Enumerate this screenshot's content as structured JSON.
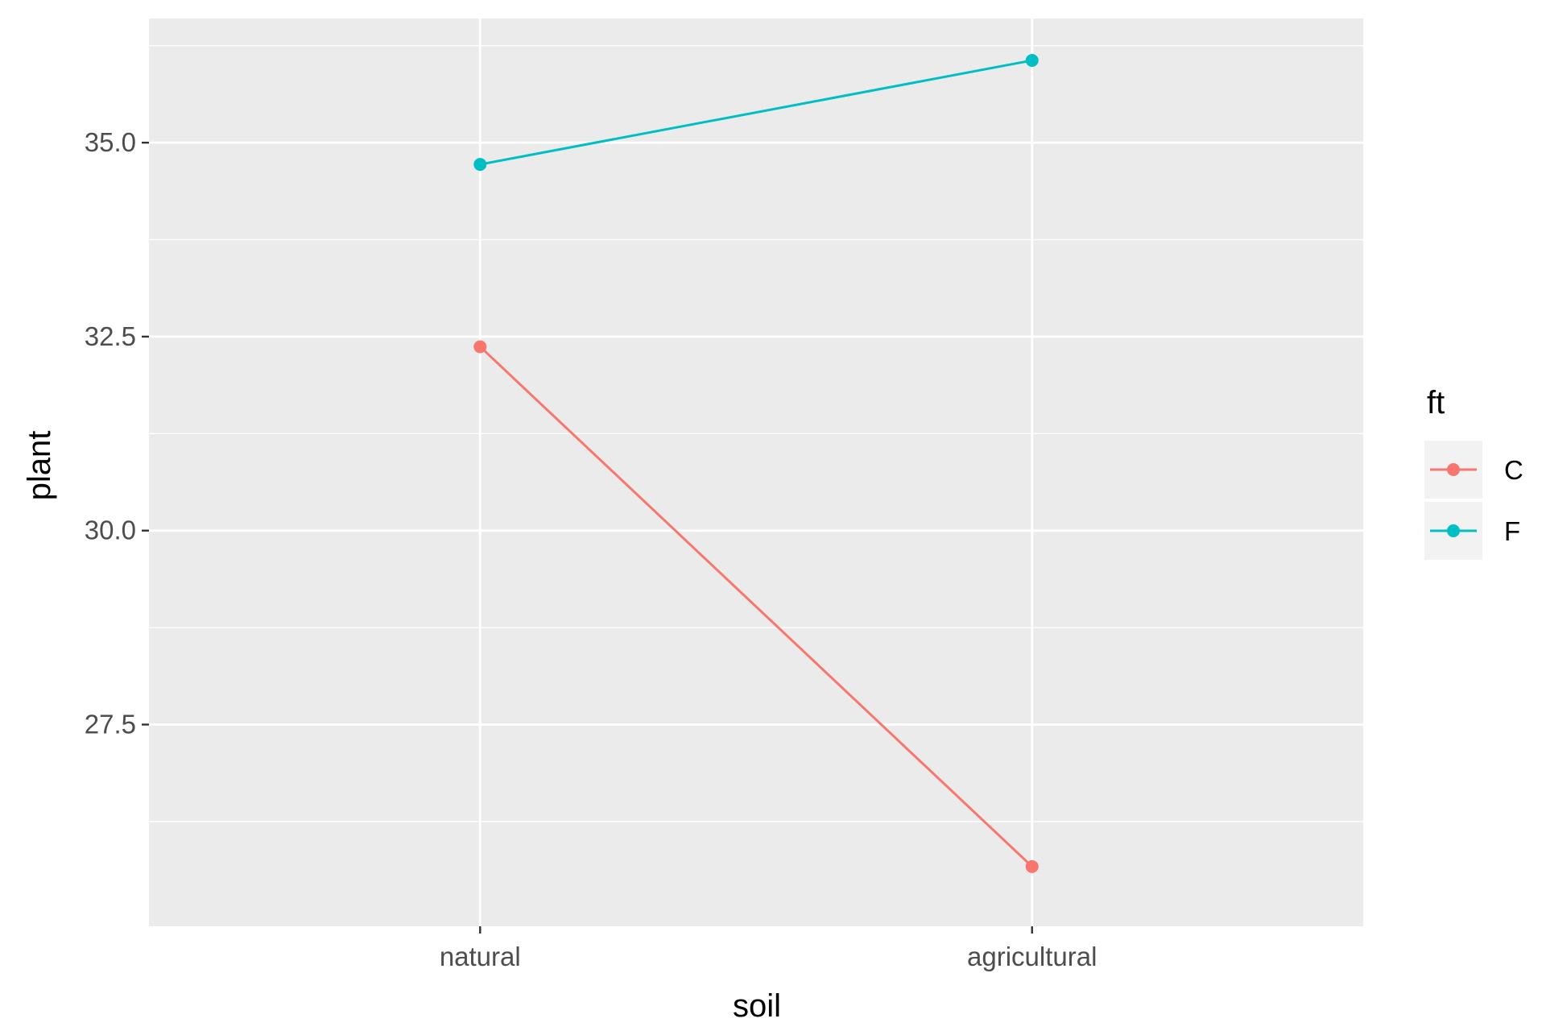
{
  "chart_data": {
    "type": "line",
    "xlabel": "soil",
    "ylabel": "plant",
    "categories": [
      "natural",
      "agricultural"
    ],
    "ylim": [
      24.9,
      36.6
    ],
    "yticks": [
      27.5,
      30.0,
      32.5,
      35.0
    ],
    "ytick_labels": [
      "27.5",
      "30.0",
      "32.5",
      "35.0"
    ],
    "grid": true,
    "legend": {
      "title": "ft",
      "placement": "right"
    },
    "series": [
      {
        "name": "C",
        "color": "#F8766D",
        "values": [
          32.37,
          25.67
        ]
      },
      {
        "name": "F",
        "color": "#00BFC4",
        "values": [
          34.72,
          36.06
        ]
      }
    ]
  }
}
